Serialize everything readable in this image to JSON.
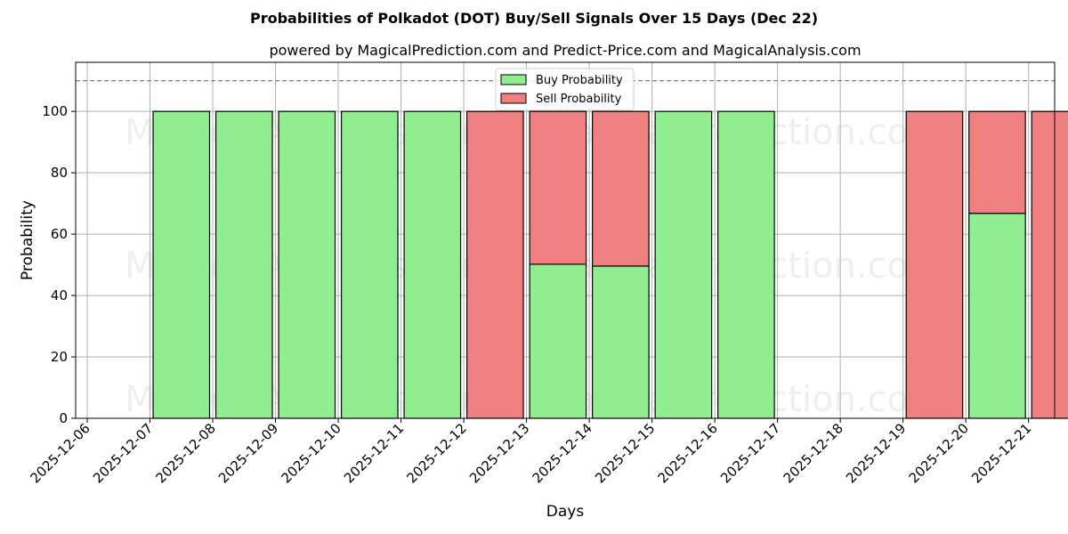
{
  "chart_data": {
    "type": "bar",
    "stacked": true,
    "title": "Probabilities of Polkadot (DOT) Buy/Sell Signals Over 15 Days (Dec 22)",
    "subtitle": "powered by MagicalPrediction.com and Predict-Price.com and MagicalAnalysis.com",
    "xlabel": "Days",
    "ylabel": "Probability",
    "ylim": [
      0,
      116
    ],
    "yticks": [
      0,
      20,
      40,
      60,
      80,
      100
    ],
    "xticks": [
      "2025-12-06",
      "2025-12-07",
      "2025-12-08",
      "2025-12-09",
      "2025-12-10",
      "2025-12-11",
      "2025-12-12",
      "2025-12-13",
      "2025-12-14",
      "2025-12-15",
      "2025-12-16",
      "2025-12-17",
      "2025-12-18",
      "2025-12-19",
      "2025-12-20",
      "2025-12-21"
    ],
    "categories": [
      "2025-12-07",
      "2025-12-08",
      "2025-12-09",
      "2025-12-10",
      "2025-12-11",
      "2025-12-12",
      "2025-12-13",
      "2025-12-14",
      "2025-12-15",
      "2025-12-16",
      "2025-12-17",
      "2025-12-18",
      "2025-12-19",
      "2025-12-20",
      "2025-12-21"
    ],
    "series": [
      {
        "name": "Buy Probability",
        "color": "#90ee90",
        "values": [
          100,
          100,
          100,
          100,
          100,
          0,
          50.2,
          49.6,
          100,
          100,
          0,
          0,
          0,
          66.8,
          0
        ]
      },
      {
        "name": "Sell Probability",
        "color": "#f08080",
        "values": [
          0,
          0,
          0,
          0,
          0,
          100,
          49.8,
          50.4,
          0,
          0,
          0,
          0,
          100,
          33.2,
          100
        ]
      }
    ],
    "reference_line": 110,
    "grid": true,
    "legend_position": "top-center",
    "watermarks": [
      "MagicalAnalysis.com",
      "MagicalPrediction.com"
    ]
  }
}
